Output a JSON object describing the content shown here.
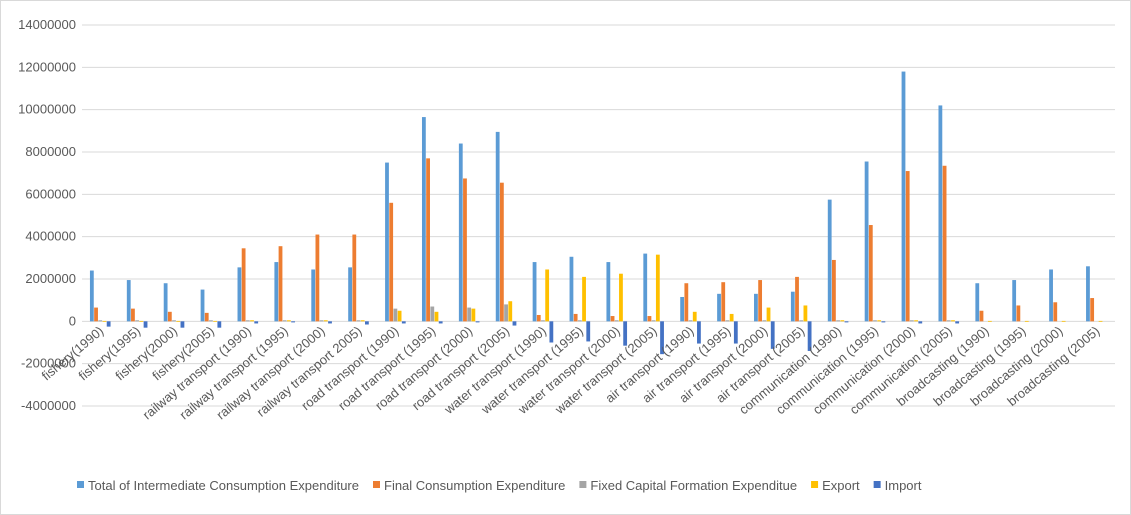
{
  "chart_data": {
    "type": "bar",
    "title": "",
    "xlabel": "",
    "ylabel": "",
    "ylim": [
      -4000000,
      14000000
    ],
    "yticks": [
      -4000000,
      -2000000,
      0,
      2000000,
      4000000,
      6000000,
      8000000,
      10000000,
      12000000,
      14000000
    ],
    "ytick_labels": [
      "-4000000",
      "-2000000",
      "0",
      "2000000",
      "4000000",
      "6000000",
      "8000000",
      "10000000",
      "12000000",
      "14000000"
    ],
    "grid": true,
    "legend_position": "bottom",
    "categories": [
      "fishery(1990)",
      "fishery(1995)",
      "fishery(2000)",
      "fishery(2005)",
      "railway transport (1990)",
      "railway transport (1995)",
      "railway transport (2000)",
      "railway transport 2005)",
      "road transport (1990)",
      "road transport (1995)",
      "road transport (2000)",
      "road transport (2005)",
      "water transport (1990)",
      "water transport (1995)",
      "water transport (2000)",
      "water transport (2005)",
      "air transport (1990)",
      "air transport (1995)",
      "air transport (2000)",
      "air transport (2005)",
      "communication (1990)",
      "communication (1995)",
      "communication (2000)",
      "communication (2005)",
      "broadcasting (1990)",
      "broadcasting (1995)",
      "broadcasting (2000)",
      "broadcasting (2005)"
    ],
    "series": [
      {
        "name": "Total of Intermediate Consumption Expenditure",
        "color": "#5b9bd5",
        "values": [
          2400000,
          1950000,
          1800000,
          1500000,
          2550000,
          2800000,
          2450000,
          2550000,
          7500000,
          9650000,
          8400000,
          8950000,
          2800000,
          3050000,
          2800000,
          3200000,
          1150000,
          1300000,
          1300000,
          1400000,
          5750000,
          7550000,
          11800000,
          10200000,
          1800000,
          1950000,
          2450000,
          2600000
        ]
      },
      {
        "name": "Final Consumption Expenditure",
        "color": "#ed7d31",
        "values": [
          650000,
          600000,
          450000,
          400000,
          3450000,
          3550000,
          4100000,
          4100000,
          5600000,
          7700000,
          6750000,
          6550000,
          300000,
          350000,
          250000,
          250000,
          1800000,
          1850000,
          1950000,
          2100000,
          2900000,
          4550000,
          7100000,
          7350000,
          500000,
          750000,
          900000,
          1100000
        ]
      },
      {
        "name": "Fixed Capital Formation Expendituе",
        "color": "#a5a5a5",
        "values": [
          50000,
          50000,
          50000,
          50000,
          50000,
          50000,
          50000,
          50000,
          600000,
          700000,
          650000,
          800000,
          50000,
          50000,
          50000,
          50000,
          50000,
          50000,
          50000,
          50000,
          50000,
          50000,
          50000,
          50000,
          0,
          0,
          0,
          0
        ]
      },
      {
        "name": "Export",
        "color": "#ffc000",
        "values": [
          20000,
          20000,
          20000,
          20000,
          50000,
          50000,
          50000,
          50000,
          500000,
          450000,
          600000,
          950000,
          2450000,
          2100000,
          2250000,
          3150000,
          450000,
          350000,
          650000,
          750000,
          50000,
          50000,
          50000,
          50000,
          20000,
          20000,
          20000,
          20000
        ]
      },
      {
        "name": "Import",
        "color": "#4472c4",
        "values": [
          -250000,
          -300000,
          -300000,
          -300000,
          -100000,
          -50000,
          -100000,
          -150000,
          -100000,
          -100000,
          -50000,
          -200000,
          -1000000,
          -950000,
          -1150000,
          -1550000,
          -1050000,
          -1050000,
          -1300000,
          -1400000,
          -50000,
          -50000,
          -100000,
          -100000,
          0,
          0,
          0,
          0
        ]
      }
    ]
  },
  "legend": {
    "items": [
      "Total of Intermediate Consumption Expenditure",
      "Final Consumption Expenditure",
      "Fixed Capital Formation Expenditue",
      "Export",
      "Import"
    ]
  },
  "colors": {
    "grid": "#d9d9d9",
    "axis_text": "#595959",
    "border": "#d9d9d9"
  }
}
